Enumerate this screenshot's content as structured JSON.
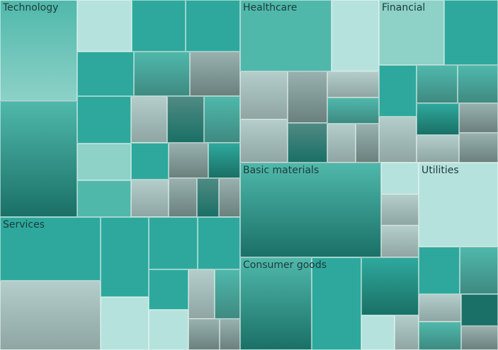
{
  "chart_data": {
    "type": "treemap",
    "colors": {
      "teal": "#2ea89c",
      "mid_teal": "#4fb8ab",
      "light_teal": "#8dd1c7",
      "pale": "#b6e2dd",
      "gray_fade_top": "#b3cdca",
      "dark_teal": "#1a7066",
      "gray_dark": "#6a817e"
    },
    "sectors": [
      {
        "name": "Technology",
        "tiles": [
          {
            "share": 0.14,
            "style": "gm"
          },
          {
            "share": 0.16,
            "style": "gd"
          },
          {
            "share": 0.05,
            "style": "p"
          },
          {
            "share": 0.05,
            "style": "t"
          },
          {
            "share": 0.05,
            "style": "t"
          },
          {
            "share": 0.045,
            "style": "t"
          },
          {
            "share": 0.045,
            "style": "gtm"
          },
          {
            "share": 0.04,
            "style": "gg"
          },
          {
            "share": 0.045,
            "style": "t"
          },
          {
            "share": 0.035,
            "style": "l"
          },
          {
            "share": 0.035,
            "style": "m"
          },
          {
            "share": 0.03,
            "style": "gl"
          },
          {
            "share": 0.03,
            "style": "gdd"
          },
          {
            "share": 0.03,
            "style": "gtm"
          },
          {
            "share": 0.025,
            "style": "t"
          },
          {
            "share": 0.025,
            "style": "gl"
          },
          {
            "share": 0.025,
            "style": "gg"
          },
          {
            "share": 0.02,
            "style": "gtd"
          },
          {
            "share": 0.02,
            "style": "gg"
          },
          {
            "share": 0.015,
            "style": "gdd"
          },
          {
            "share": 0.015,
            "style": "gg"
          }
        ]
      },
      {
        "name": "Healthcare",
        "tiles": [
          {
            "share": 0.29,
            "style": "m"
          },
          {
            "share": 0.15,
            "style": "p"
          },
          {
            "share": 0.1,
            "style": "gl"
          },
          {
            "share": 0.09,
            "style": "gl"
          },
          {
            "share": 0.09,
            "style": "gg"
          },
          {
            "share": 0.07,
            "style": "gdd"
          },
          {
            "share": 0.06,
            "style": "gl"
          },
          {
            "share": 0.06,
            "style": "gtm"
          },
          {
            "share": 0.05,
            "style": "gl"
          },
          {
            "share": 0.04,
            "style": "gg"
          }
        ]
      },
      {
        "name": "Financial",
        "tiles": [
          {
            "share": 0.22,
            "style": "l"
          },
          {
            "share": 0.18,
            "style": "t"
          },
          {
            "share": 0.1,
            "style": "t"
          },
          {
            "share": 0.09,
            "style": "gl"
          },
          {
            "share": 0.08,
            "style": "gtm"
          },
          {
            "share": 0.08,
            "style": "gtm"
          },
          {
            "share": 0.07,
            "style": "gtd"
          },
          {
            "share": 0.06,
            "style": "gl"
          },
          {
            "share": 0.06,
            "style": "gg"
          },
          {
            "share": 0.06,
            "style": "gg"
          }
        ]
      },
      {
        "name": "Services",
        "tiles": [
          {
            "share": 0.2,
            "style": "t"
          },
          {
            "share": 0.22,
            "style": "gl"
          },
          {
            "share": 0.12,
            "style": "t"
          },
          {
            "share": 0.08,
            "style": "p"
          },
          {
            "share": 0.08,
            "style": "t"
          },
          {
            "share": 0.07,
            "style": "t"
          },
          {
            "share": 0.05,
            "style": "t"
          },
          {
            "share": 0.05,
            "style": "p"
          },
          {
            "share": 0.04,
            "style": "gl"
          },
          {
            "share": 0.04,
            "style": "gtm"
          },
          {
            "share": 0.03,
            "style": "gg"
          },
          {
            "share": 0.02,
            "style": "gg"
          }
        ]
      },
      {
        "name": "Basic materials",
        "tiles": [
          {
            "share": 0.79,
            "style": "gt"
          },
          {
            "share": 0.07,
            "style": "p"
          },
          {
            "share": 0.07,
            "style": "gl"
          },
          {
            "share": 0.07,
            "style": "gl"
          }
        ]
      },
      {
        "name": "Utilities",
        "tiles": [
          {
            "share": 0.45,
            "style": "p"
          },
          {
            "share": 0.13,
            "style": "t"
          },
          {
            "share": 0.12,
            "style": "gtm"
          },
          {
            "share": 0.08,
            "style": "gl"
          },
          {
            "share": 0.08,
            "style": "gtm"
          },
          {
            "share": 0.08,
            "style": "dk"
          },
          {
            "share": 0.06,
            "style": "gg"
          }
        ]
      },
      {
        "name": "Consumer goods",
        "tiles": [
          {
            "share": 0.4,
            "style": "gt"
          },
          {
            "share": 0.28,
            "style": "t"
          },
          {
            "share": 0.2,
            "style": "gtd"
          },
          {
            "share": 0.07,
            "style": "p"
          },
          {
            "share": 0.05,
            "style": "gl"
          }
        ]
      }
    ]
  }
}
